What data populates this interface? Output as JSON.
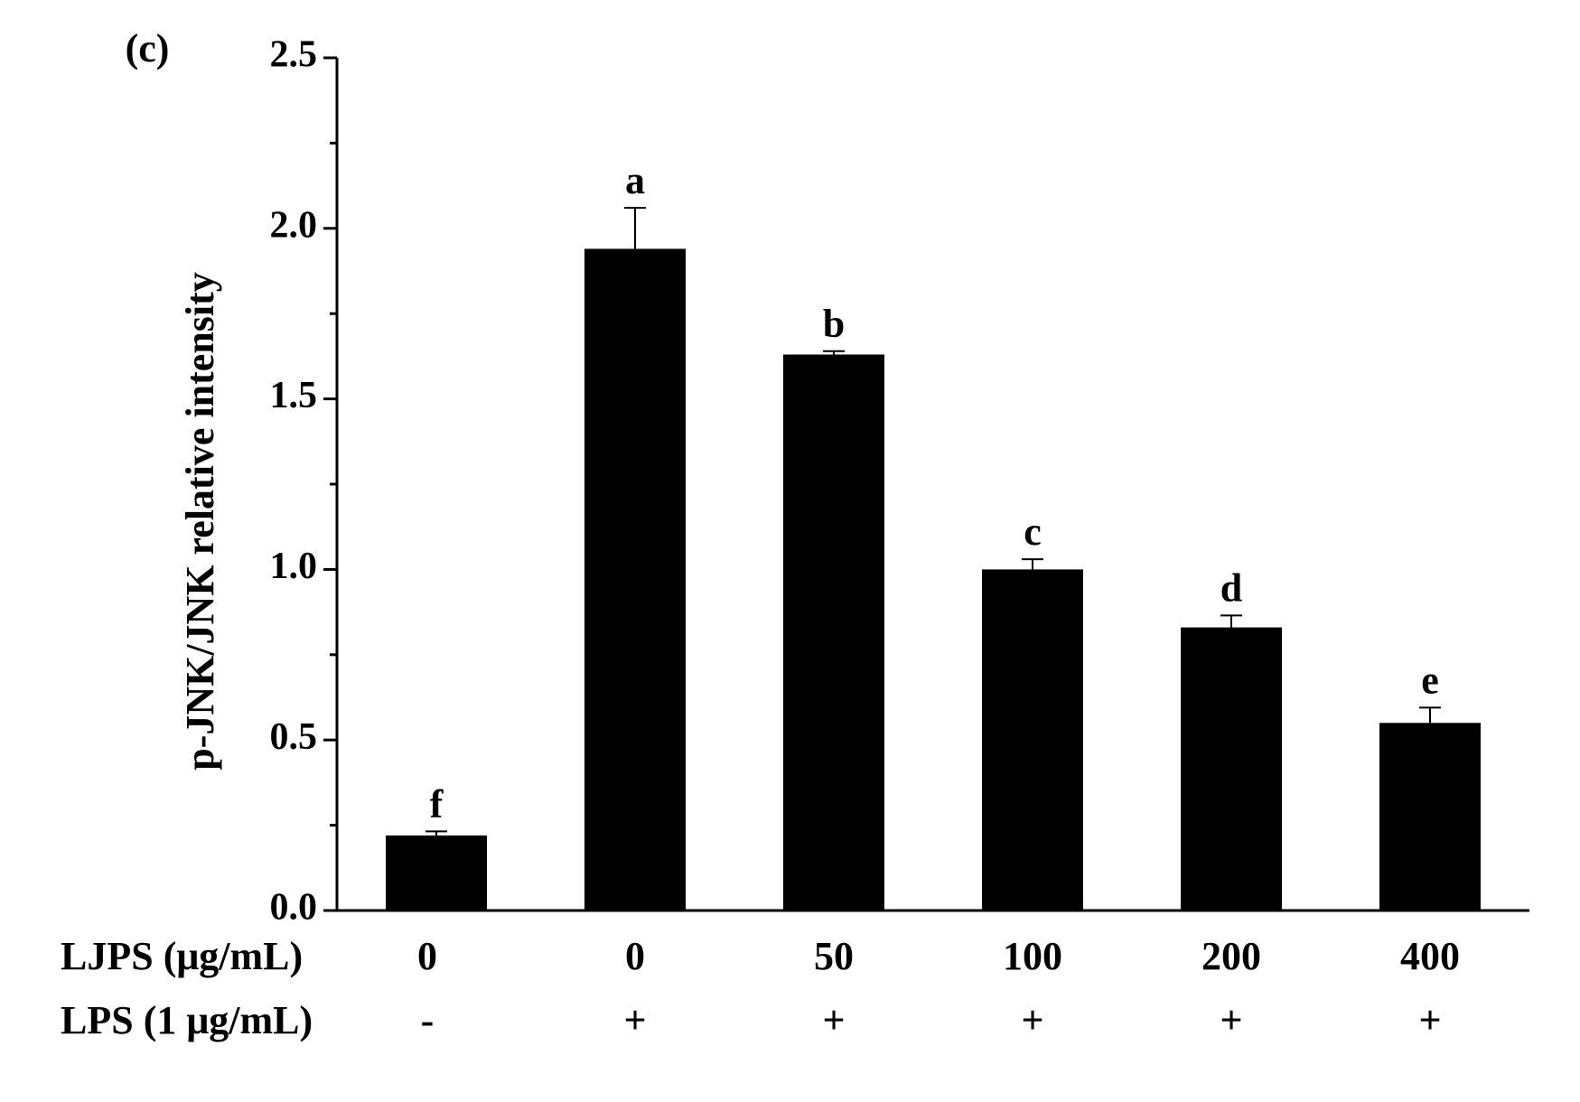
{
  "chart_data": {
    "type": "bar",
    "panel_label": "(c)",
    "y_label": "p-JNK/JNK relative intensity",
    "categories": [
      null,
      null,
      null,
      null,
      null,
      null
    ],
    "values": [
      0.22,
      1.94,
      1.63,
      1.0,
      0.83,
      0.55
    ],
    "errors": [
      0.012,
      0.12,
      0.01,
      0.03,
      0.035,
      0.045
    ],
    "value_labels": [
      "f",
      "a",
      "b",
      "c",
      "d",
      "e"
    ],
    "color": "#000000",
    "ylim": [
      0,
      2.5
    ],
    "yticks": [
      {
        "value": 0,
        "label": "0.0"
      },
      0.5,
      {
        "value": 1,
        "label": "1.0"
      },
      1.5,
      {
        "value": 2,
        "label": "2.0"
      },
      2.5
    ],
    "minor_yticks": [
      0.25,
      0.75,
      1.25,
      1.75,
      2.25
    ],
    "x_rows": [
      {
        "label": "LJPS (μg/mL)",
        "cells": [
          "0",
          "0",
          "50",
          "100",
          "200",
          "400"
        ]
      },
      {
        "label": "LPS (1 μg/mL)",
        "cells": [
          "-",
          "+",
          "+",
          "+",
          "+",
          "+"
        ]
      }
    ],
    "grid": false
  }
}
